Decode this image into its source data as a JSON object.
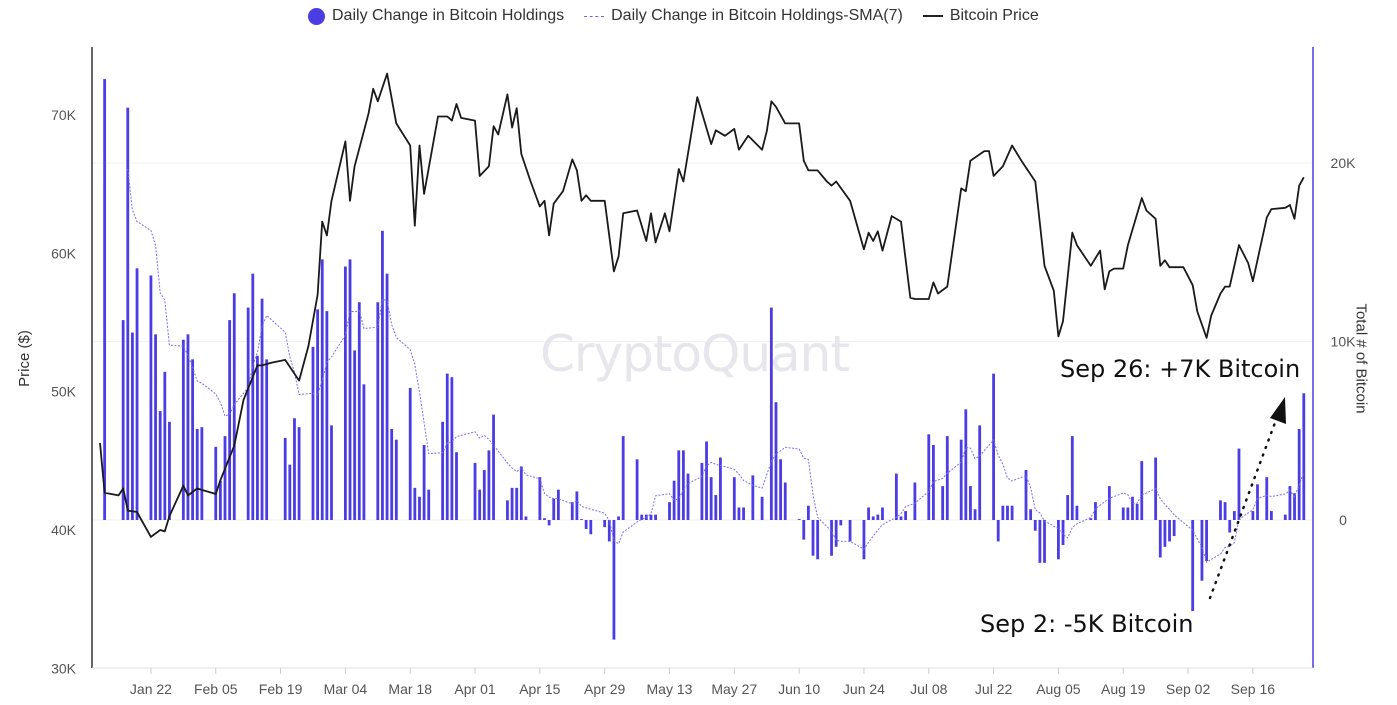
{
  "chart_data": {
    "type": "bar+line",
    "title": "",
    "legend": {
      "position": "top-center",
      "items": [
        "Daily Change in Bitcoin Holdings",
        "Daily Change in Bitcoin Holdings-SMA(7)",
        "Bitcoin Price"
      ]
    },
    "x_unit": "days since Jan 11",
    "x_ticks": [
      {
        "label": "Jan 22",
        "d": 11
      },
      {
        "label": "Feb 05",
        "d": 25
      },
      {
        "label": "Feb 19",
        "d": 39
      },
      {
        "label": "Mar 04",
        "d": 53
      },
      {
        "label": "Mar 18",
        "d": 67
      },
      {
        "label": "Apr 01",
        "d": 81
      },
      {
        "label": "Apr 15",
        "d": 95
      },
      {
        "label": "Apr 29",
        "d": 109
      },
      {
        "label": "May 13",
        "d": 123
      },
      {
        "label": "May 27",
        "d": 137
      },
      {
        "label": "Jun 10",
        "d": 151
      },
      {
        "label": "Jun 24",
        "d": 165
      },
      {
        "label": "Jul 08",
        "d": 179
      },
      {
        "label": "Jul 22",
        "d": 193
      },
      {
        "label": "Aug 05",
        "d": 207
      },
      {
        "label": "Aug 19",
        "d": 221
      },
      {
        "label": "Sep 02",
        "d": 235
      },
      {
        "label": "Sep 16",
        "d": 249
      }
    ],
    "left_axis": {
      "title": "Price ($)",
      "ticks": [
        "30K",
        "40K",
        "50K",
        "60K",
        "70K"
      ],
      "tick_values": [
        30,
        40,
        50,
        60,
        70
      ],
      "range": [
        30,
        74.5
      ],
      "unit": "thousand USD"
    },
    "right_axis": {
      "title": "Total # of Bitcoin",
      "ticks": [
        "0",
        "10K",
        "20K"
      ],
      "tick_values": [
        0,
        10,
        20
      ],
      "range": [
        -8.3,
        26.6
      ],
      "unit": "thousand BTC"
    },
    "sma_window": 7,
    "bars": [
      [
        1,
        24.7
      ],
      [
        5,
        11.2
      ],
      [
        6,
        23.1
      ],
      [
        7,
        10.5
      ],
      [
        8,
        14.1
      ],
      [
        11,
        13.7
      ],
      [
        12,
        10.4
      ],
      [
        13,
        6.1
      ],
      [
        14,
        8.3
      ],
      [
        15,
        5.5
      ],
      [
        18,
        10.1
      ],
      [
        19,
        10.4
      ],
      [
        20,
        9.0
      ],
      [
        21,
        5.1
      ],
      [
        22,
        5.2
      ],
      [
        25,
        4.1
      ],
      [
        26,
        2.2
      ],
      [
        27,
        4.7
      ],
      [
        28,
        11.2
      ],
      [
        29,
        12.7
      ],
      [
        32,
        11.9
      ],
      [
        33,
        13.8
      ],
      [
        34,
        9.2
      ],
      [
        35,
        12.4
      ],
      [
        36,
        9.0
      ],
      [
        40,
        4.6
      ],
      [
        41,
        3.1
      ],
      [
        42,
        5.7
      ],
      [
        43,
        5.2
      ],
      [
        46,
        9.7
      ],
      [
        47,
        11.8
      ],
      [
        48,
        14.6
      ],
      [
        49,
        11.7
      ],
      [
        50,
        5.3
      ],
      [
        53,
        14.2
      ],
      [
        54,
        14.6
      ],
      [
        55,
        9.5
      ],
      [
        56,
        12.2
      ],
      [
        57,
        7.6
      ],
      [
        60,
        12.2
      ],
      [
        61,
        16.2
      ],
      [
        62,
        13.8
      ],
      [
        63,
        5.1
      ],
      [
        64,
        4.5
      ],
      [
        67,
        7.4
      ],
      [
        68,
        1.8
      ],
      [
        69,
        1.3
      ],
      [
        70,
        4.2
      ],
      [
        71,
        1.7
      ],
      [
        74,
        5.5
      ],
      [
        75,
        8.2
      ],
      [
        76,
        8.0
      ],
      [
        77,
        3.8
      ],
      [
        81,
        3.2
      ],
      [
        82,
        1.7
      ],
      [
        83,
        2.8
      ],
      [
        84,
        3.9
      ],
      [
        85,
        5.9
      ],
      [
        88,
        1.1
      ],
      [
        89,
        1.8
      ],
      [
        90,
        1.8
      ],
      [
        91,
        3.0
      ],
      [
        92,
        0.2
      ],
      [
        95,
        2.4
      ],
      [
        96,
        0.1
      ],
      [
        97,
        -0.3
      ],
      [
        98,
        1.2
      ],
      [
        99,
        1.7
      ],
      [
        102,
        1.0
      ],
      [
        103,
        1.6
      ],
      [
        104,
        0.05
      ],
      [
        105,
        -0.5
      ],
      [
        106,
        -0.8
      ],
      [
        109,
        -0.4
      ],
      [
        110,
        -1.2
      ],
      [
        111,
        -6.7
      ],
      [
        112,
        0.2
      ],
      [
        113,
        4.7
      ],
      [
        116,
        3.4
      ],
      [
        117,
        0.3
      ],
      [
        118,
        0.3
      ],
      [
        119,
        0.3
      ],
      [
        120,
        0.3
      ],
      [
        123,
        1.0
      ],
      [
        124,
        2.2
      ],
      [
        125,
        3.9
      ],
      [
        126,
        3.9
      ],
      [
        127,
        2.6
      ],
      [
        130,
        3.2
      ],
      [
        131,
        4.4
      ],
      [
        132,
        2.4
      ],
      [
        133,
        1.4
      ],
      [
        134,
        3.5
      ],
      [
        137,
        2.4
      ],
      [
        138,
        0.7
      ],
      [
        139,
        0.7
      ],
      [
        141,
        2.5
      ],
      [
        143,
        1.3
      ],
      [
        145,
        11.9
      ],
      [
        146,
        6.6
      ],
      [
        147,
        3.4
      ],
      [
        148,
        2.1
      ],
      [
        151,
        0.05
      ],
      [
        152,
        -1.1
      ],
      [
        153,
        0.8
      ],
      [
        154,
        -2.0
      ],
      [
        155,
        -2.2
      ],
      [
        158,
        -2.0
      ],
      [
        159,
        -1.5
      ],
      [
        160,
        -0.3
      ],
      [
        162,
        -1.2
      ],
      [
        165,
        -2.2
      ],
      [
        166,
        0.7
      ],
      [
        167,
        0.2
      ],
      [
        168,
        0.3
      ],
      [
        169,
        0.7
      ],
      [
        172,
        2.6
      ],
      [
        173,
        0.2
      ],
      [
        174,
        0.5
      ],
      [
        176,
        2.1
      ],
      [
        179,
        4.8
      ],
      [
        180,
        4.2
      ],
      [
        182,
        1.9
      ],
      [
        183,
        4.7
      ],
      [
        186,
        4.5
      ],
      [
        187,
        6.2
      ],
      [
        188,
        1.9
      ],
      [
        189,
        0.6
      ],
      [
        190,
        5.3
      ],
      [
        193,
        8.2
      ],
      [
        194,
        -1.2
      ],
      [
        195,
        0.8
      ],
      [
        196,
        0.8
      ],
      [
        197,
        0.8
      ],
      [
        200,
        2.8
      ],
      [
        201,
        0.6
      ],
      [
        202,
        -0.6
      ],
      [
        203,
        -2.4
      ],
      [
        204,
        -2.4
      ],
      [
        207,
        -2.2
      ],
      [
        208,
        -1.4
      ],
      [
        209,
        1.4
      ],
      [
        210,
        4.7
      ],
      [
        211,
        0.8
      ],
      [
        214,
        0.1
      ],
      [
        215,
        1.0
      ],
      [
        218,
        1.9
      ],
      [
        221,
        0.7
      ],
      [
        222,
        0.7
      ],
      [
        223,
        1.3
      ],
      [
        224,
        0.9
      ],
      [
        225,
        3.3
      ],
      [
        228,
        3.5
      ],
      [
        229,
        -2.1
      ],
      [
        230,
        -1.5
      ],
      [
        231,
        -1.2
      ],
      [
        232,
        -0.9
      ],
      [
        236,
        -5.1
      ],
      [
        238,
        -3.4
      ],
      [
        239,
        -2.3
      ],
      [
        242,
        1.1
      ],
      [
        243,
        1.0
      ],
      [
        244,
        -0.7
      ],
      [
        245,
        0.5
      ],
      [
        246,
        4.0
      ],
      [
        249,
        0.5
      ],
      [
        250,
        2.0
      ],
      [
        252,
        2.4
      ],
      [
        253,
        0.5
      ],
      [
        256,
        0.3
      ],
      [
        257,
        1.9
      ],
      [
        258,
        1.5
      ],
      [
        259,
        5.1
      ],
      [
        260,
        7.1
      ]
    ],
    "price": [
      [
        0,
        46.3
      ],
      [
        1,
        42.7
      ],
      [
        4,
        42.5
      ],
      [
        5,
        43.0
      ],
      [
        6,
        41.4
      ],
      [
        8,
        41.3
      ],
      [
        11,
        39.5
      ],
      [
        13,
        40.0
      ],
      [
        14,
        39.9
      ],
      [
        15,
        41.0
      ],
      [
        18,
        43.2
      ],
      [
        19,
        42.5
      ],
      [
        21,
        43.0
      ],
      [
        22,
        42.9
      ],
      [
        25,
        42.6
      ],
      [
        26,
        43.6
      ],
      [
        29,
        46.1
      ],
      [
        31,
        49.4
      ],
      [
        34,
        51.9
      ],
      [
        35,
        51.9
      ],
      [
        37,
        52.1
      ],
      [
        40,
        52.3
      ],
      [
        43,
        50.8
      ],
      [
        45,
        53.3
      ],
      [
        47,
        57.0
      ],
      [
        48,
        62.3
      ],
      [
        49,
        61.3
      ],
      [
        50,
        63.8
      ],
      [
        53,
        68.1
      ],
      [
        54,
        63.8
      ],
      [
        55,
        66.3
      ],
      [
        58,
        70.1
      ],
      [
        59,
        71.9
      ],
      [
        60,
        71.0
      ],
      [
        62,
        73.0
      ],
      [
        64,
        69.4
      ],
      [
        67,
        67.8
      ],
      [
        68,
        62.0
      ],
      [
        69,
        67.8
      ],
      [
        70,
        64.3
      ],
      [
        73,
        69.9
      ],
      [
        75,
        69.9
      ],
      [
        76,
        69.6
      ],
      [
        77,
        70.8
      ],
      [
        78,
        69.8
      ],
      [
        81,
        69.6
      ],
      [
        82,
        65.6
      ],
      [
        84,
        66.3
      ],
      [
        85,
        69.2
      ],
      [
        86,
        68.6
      ],
      [
        88,
        71.5
      ],
      [
        89,
        69.1
      ],
      [
        90,
        70.5
      ],
      [
        91,
        67.2
      ],
      [
        93,
        65.2
      ],
      [
        95,
        63.4
      ],
      [
        96,
        63.8
      ],
      [
        97,
        61.3
      ],
      [
        98,
        63.6
      ],
      [
        100,
        64.5
      ],
      [
        102,
        66.8
      ],
      [
        103,
        66.0
      ],
      [
        104,
        63.8
      ],
      [
        105,
        64.2
      ],
      [
        106,
        63.8
      ],
      [
        109,
        63.8
      ],
      [
        111,
        58.7
      ],
      [
        112,
        59.8
      ],
      [
        113,
        62.9
      ],
      [
        116,
        63.1
      ],
      [
        118,
        60.9
      ],
      [
        119,
        62.9
      ],
      [
        120,
        60.8
      ],
      [
        122,
        62.9
      ],
      [
        123,
        61.6
      ],
      [
        125,
        66.1
      ],
      [
        126,
        65.2
      ],
      [
        129,
        71.3
      ],
      [
        132,
        67.9
      ],
      [
        133,
        68.9
      ],
      [
        135,
        68.5
      ],
      [
        137,
        69.0
      ],
      [
        138,
        67.5
      ],
      [
        140,
        68.5
      ],
      [
        143,
        67.5
      ],
      [
        144,
        68.8
      ],
      [
        145,
        71.0
      ],
      [
        146,
        70.6
      ],
      [
        148,
        69.4
      ],
      [
        151,
        69.4
      ],
      [
        152,
        66.7
      ],
      [
        153,
        66.0
      ],
      [
        155,
        66.0
      ],
      [
        157,
        65.2
      ],
      [
        158,
        64.9
      ],
      [
        159,
        65.2
      ],
      [
        162,
        63.8
      ],
      [
        165,
        60.3
      ],
      [
        166,
        61.5
      ],
      [
        167,
        60.9
      ],
      [
        168,
        61.6
      ],
      [
        169,
        60.2
      ],
      [
        171,
        62.7
      ],
      [
        173,
        62.3
      ],
      [
        175,
        56.8
      ],
      [
        176,
        56.7
      ],
      [
        179,
        56.7
      ],
      [
        180,
        57.9
      ],
      [
        181,
        57.1
      ],
      [
        183,
        57.6
      ],
      [
        186,
        64.7
      ],
      [
        187,
        64.5
      ],
      [
        188,
        66.7
      ],
      [
        191,
        67.4
      ],
      [
        192,
        67.4
      ],
      [
        193,
        65.6
      ],
      [
        195,
        66.3
      ],
      [
        197,
        67.8
      ],
      [
        199,
        66.7
      ],
      [
        202,
        65.2
      ],
      [
        204,
        59.1
      ],
      [
        206,
        57.3
      ],
      [
        207,
        54.0
      ],
      [
        208,
        55.1
      ],
      [
        210,
        61.5
      ],
      [
        211,
        60.6
      ],
      [
        214,
        59.1
      ],
      [
        216,
        60.2
      ],
      [
        217,
        57.4
      ],
      [
        218,
        58.7
      ],
      [
        219,
        58.9
      ],
      [
        221,
        58.9
      ],
      [
        222,
        60.6
      ],
      [
        225,
        64.0
      ],
      [
        226,
        63.1
      ],
      [
        228,
        62.5
      ],
      [
        229,
        59.1
      ],
      [
        230,
        59.5
      ],
      [
        231,
        59.0
      ],
      [
        234,
        59.0
      ],
      [
        236,
        57.7
      ],
      [
        237,
        55.8
      ],
      [
        239,
        53.9
      ],
      [
        240,
        55.5
      ],
      [
        242,
        57.1
      ],
      [
        243,
        57.6
      ],
      [
        244,
        57.6
      ],
      [
        246,
        60.6
      ],
      [
        248,
        59.3
      ],
      [
        249,
        58.0
      ],
      [
        252,
        62.6
      ],
      [
        253,
        63.2
      ],
      [
        256,
        63.3
      ],
      [
        257,
        63.5
      ],
      [
        258,
        62.5
      ],
      [
        259,
        64.9
      ],
      [
        260,
        65.5
      ]
    ],
    "annotations": [
      "Sep 26: +7K Bitcoin",
      "Sep 2: -5K Bitcoin"
    ],
    "watermark": "CryptoQuant"
  },
  "colors": {
    "bars": "#4b3ce4",
    "sma": "#7a6fee",
    "price": "#1a1a1a",
    "right_axis": "#4b3ce4"
  }
}
